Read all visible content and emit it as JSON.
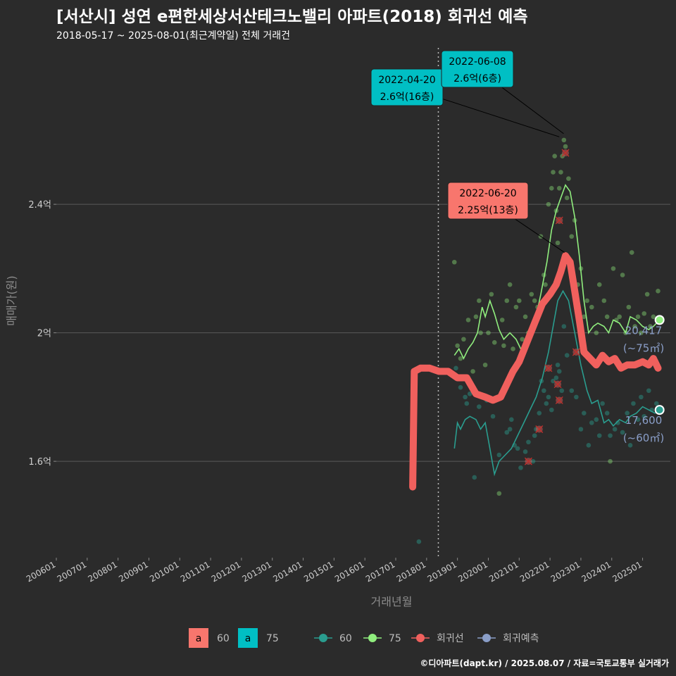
{
  "header": {
    "title": "[서산시] 성연 e편한세상서산테크노밸리 아파트(2018) 회귀선 예측",
    "subtitle": "2018-05-17 ~ 2025-08-01(최근계약일) 전체 거래건",
    "caption": "©디아파트(dapt.kr) / 2025.08.07 / 자료=국토교통부 실거래가"
  },
  "chart_data": {
    "type": "line",
    "xlabel": "거래년월",
    "ylabel": "매매가(원)",
    "x_range": [
      2006.0,
      2025.9
    ],
    "ylim": [
      1.3,
      2.9
    ],
    "y_ticks": [
      {
        "v": 1.6,
        "label": "1.6억"
      },
      {
        "v": 2.0,
        "label": "2억"
      },
      {
        "v": 2.4,
        "label": "2.4억"
      }
    ],
    "x_ticks": [
      "200601",
      "200701",
      "200801",
      "200901",
      "201001",
      "201101",
      "201201",
      "201301",
      "201401",
      "201501",
      "201601",
      "201701",
      "201801",
      "201901",
      "202001",
      "202101",
      "202201",
      "202301",
      "202401",
      "202501"
    ],
    "vline_x": 2018.38,
    "colors": {
      "s60": "#2a9d8f",
      "s75": "#90ee7e",
      "reg": "#f0605d",
      "pred": "#8a9ec8",
      "box60": "#f8766d",
      "box75": "#00bfc4",
      "grid": "#5a5a5a"
    },
    "series": [
      {
        "name": "60",
        "key": "s60",
        "points": [
          [
            2018.9,
            1.64
          ],
          [
            2019.0,
            1.72
          ],
          [
            2019.1,
            1.7
          ],
          [
            2019.25,
            1.73
          ],
          [
            2019.4,
            1.74
          ],
          [
            2019.6,
            1.73
          ],
          [
            2019.75,
            1.7
          ],
          [
            2019.9,
            1.72
          ],
          [
            2020.05,
            1.64
          ],
          [
            2020.2,
            1.56
          ],
          [
            2020.35,
            1.6
          ],
          [
            2020.55,
            1.62
          ],
          [
            2020.75,
            1.64
          ],
          [
            2020.95,
            1.68
          ],
          [
            2021.15,
            1.72
          ],
          [
            2021.35,
            1.76
          ],
          [
            2021.55,
            1.8
          ],
          [
            2021.75,
            1.86
          ],
          [
            2021.95,
            1.94
          ],
          [
            2022.1,
            2.02
          ],
          [
            2022.25,
            2.1
          ],
          [
            2022.42,
            2.13
          ],
          [
            2022.6,
            2.1
          ],
          [
            2022.8,
            2.0
          ],
          [
            2023.0,
            1.9
          ],
          [
            2023.2,
            1.82
          ],
          [
            2023.35,
            1.78
          ],
          [
            2023.55,
            1.79
          ],
          [
            2023.75,
            1.72
          ],
          [
            2023.9,
            1.73
          ],
          [
            2024.05,
            1.71
          ],
          [
            2024.25,
            1.73
          ],
          [
            2024.45,
            1.72
          ],
          [
            2024.6,
            1.74
          ],
          [
            2024.8,
            1.75
          ],
          [
            2025.0,
            1.77
          ],
          [
            2025.2,
            1.76
          ],
          [
            2025.4,
            1.75
          ],
          [
            2025.55,
            1.76
          ]
        ]
      },
      {
        "name": "75",
        "key": "s75",
        "points": [
          [
            2018.9,
            1.93
          ],
          [
            2019.05,
            1.95
          ],
          [
            2019.2,
            1.92
          ],
          [
            2019.35,
            1.95
          ],
          [
            2019.5,
            1.97
          ],
          [
            2019.65,
            2.0
          ],
          [
            2019.8,
            2.08
          ],
          [
            2019.9,
            2.05
          ],
          [
            2020.05,
            2.1
          ],
          [
            2020.2,
            2.06
          ],
          [
            2020.35,
            2.01
          ],
          [
            2020.5,
            1.98
          ],
          [
            2020.7,
            2.0
          ],
          [
            2020.9,
            1.98
          ],
          [
            2021.1,
            1.94
          ],
          [
            2021.3,
            1.96
          ],
          [
            2021.5,
            2.03
          ],
          [
            2021.7,
            2.12
          ],
          [
            2021.9,
            2.22
          ],
          [
            2022.05,
            2.32
          ],
          [
            2022.2,
            2.38
          ],
          [
            2022.35,
            2.42
          ],
          [
            2022.5,
            2.46
          ],
          [
            2022.65,
            2.44
          ],
          [
            2022.8,
            2.36
          ],
          [
            2022.95,
            2.24
          ],
          [
            2023.1,
            2.1
          ],
          [
            2023.25,
            2.0
          ],
          [
            2023.4,
            2.02
          ],
          [
            2023.55,
            2.03
          ],
          [
            2023.75,
            2.02
          ],
          [
            2023.9,
            2.0
          ],
          [
            2024.05,
            2.04
          ],
          [
            2024.25,
            2.03
          ],
          [
            2024.45,
            2.0
          ],
          [
            2024.6,
            2.05
          ],
          [
            2024.8,
            2.04
          ],
          [
            2025.0,
            2.02
          ],
          [
            2025.2,
            2.01
          ],
          [
            2025.35,
            2.02
          ],
          [
            2025.55,
            2.04
          ]
        ]
      },
      {
        "name": "회귀선",
        "key": "reg",
        "points": [
          [
            2017.55,
            1.52
          ],
          [
            2017.6,
            1.88
          ],
          [
            2017.8,
            1.89
          ],
          [
            2018.1,
            1.89
          ],
          [
            2018.4,
            1.88
          ],
          [
            2018.7,
            1.88
          ],
          [
            2019.0,
            1.86
          ],
          [
            2019.3,
            1.86
          ],
          [
            2019.6,
            1.81
          ],
          [
            2019.9,
            1.8
          ],
          [
            2020.15,
            1.79
          ],
          [
            2020.4,
            1.8
          ],
          [
            2020.6,
            1.84
          ],
          [
            2020.8,
            1.88
          ],
          [
            2021.0,
            1.91
          ],
          [
            2021.25,
            1.97
          ],
          [
            2021.5,
            2.03
          ],
          [
            2021.75,
            2.09
          ],
          [
            2022.0,
            2.12
          ],
          [
            2022.2,
            2.15
          ],
          [
            2022.35,
            2.19
          ],
          [
            2022.5,
            2.24
          ],
          [
            2022.65,
            2.22
          ],
          [
            2022.8,
            2.13
          ],
          [
            2022.95,
            2.04
          ],
          [
            2023.1,
            1.94
          ],
          [
            2023.3,
            1.92
          ],
          [
            2023.5,
            1.9
          ],
          [
            2023.7,
            1.93
          ],
          [
            2023.9,
            1.91
          ],
          [
            2024.1,
            1.92
          ],
          [
            2024.3,
            1.89
          ],
          [
            2024.5,
            1.9
          ],
          [
            2024.75,
            1.9
          ],
          [
            2025.0,
            1.91
          ],
          [
            2025.2,
            1.9
          ],
          [
            2025.35,
            1.92
          ],
          [
            2025.5,
            1.89
          ]
        ]
      }
    ],
    "scatter60": [
      [
        2017.75,
        1.35
      ],
      [
        2018.95,
        1.89
      ],
      [
        2019.1,
        1.83
      ],
      [
        2019.25,
        1.8
      ],
      [
        2019.3,
        1.78
      ],
      [
        2019.4,
        1.81
      ],
      [
        2019.55,
        1.55
      ],
      [
        2019.7,
        1.77
      ],
      [
        2019.95,
        1.79
      ],
      [
        2020.15,
        1.74
      ],
      [
        2020.35,
        1.62
      ],
      [
        2020.6,
        1.69
      ],
      [
        2020.7,
        1.7
      ],
      [
        2020.75,
        1.73
      ],
      [
        2020.85,
        1.65
      ],
      [
        2020.95,
        1.64
      ],
      [
        2021.05,
        1.58
      ],
      [
        2021.2,
        1.63
      ],
      [
        2021.3,
        1.66
      ],
      [
        2021.45,
        1.6
      ],
      [
        2021.5,
        1.68
      ],
      [
        2021.55,
        1.7
      ],
      [
        2021.65,
        1.75
      ],
      [
        2021.72,
        1.85
      ],
      [
        2021.8,
        1.82
      ],
      [
        2021.88,
        1.78
      ],
      [
        2021.95,
        1.8
      ],
      [
        2022.05,
        1.76
      ],
      [
        2022.1,
        1.85
      ],
      [
        2022.2,
        1.86
      ],
      [
        2022.25,
        1.9
      ],
      [
        2022.3,
        1.88
      ],
      [
        2022.38,
        1.82
      ],
      [
        2022.45,
        2.02
      ],
      [
        2022.55,
        1.93
      ],
      [
        2022.7,
        1.82
      ],
      [
        2022.85,
        1.8
      ],
      [
        2023.0,
        1.7
      ],
      [
        2023.1,
        1.75
      ],
      [
        2023.25,
        1.65
      ],
      [
        2023.35,
        1.72
      ],
      [
        2023.5,
        1.73
      ],
      [
        2023.6,
        1.68
      ],
      [
        2023.7,
        1.78
      ],
      [
        2023.85,
        1.75
      ],
      [
        2023.95,
        1.68
      ],
      [
        2024.1,
        1.7
      ],
      [
        2024.2,
        1.72
      ],
      [
        2024.35,
        1.69
      ],
      [
        2024.5,
        1.75
      ],
      [
        2024.6,
        1.65
      ],
      [
        2024.7,
        1.78
      ],
      [
        2024.85,
        1.73
      ],
      [
        2024.95,
        1.8
      ],
      [
        2025.05,
        1.74
      ],
      [
        2025.2,
        1.82
      ],
      [
        2025.3,
        1.76
      ],
      [
        2025.45,
        1.78
      ]
    ],
    "scatter75": [
      [
        2018.9,
        2.22
      ],
      [
        2019.0,
        1.96
      ],
      [
        2019.1,
        1.92
      ],
      [
        2019.2,
        1.98
      ],
      [
        2019.35,
        2.04
      ],
      [
        2019.5,
        1.88
      ],
      [
        2019.6,
        2.05
      ],
      [
        2019.7,
        2.1
      ],
      [
        2019.75,
        2.0
      ],
      [
        2019.9,
        1.9
      ],
      [
        2020.0,
        2.0
      ],
      [
        2020.1,
        2.12
      ],
      [
        2020.2,
        1.97
      ],
      [
        2020.35,
        1.5
      ],
      [
        2020.45,
        2.04
      ],
      [
        2020.5,
        1.96
      ],
      [
        2020.6,
        2.1
      ],
      [
        2020.7,
        2.15
      ],
      [
        2020.8,
        1.95
      ],
      [
        2020.9,
        2.08
      ],
      [
        2021.0,
        2.1
      ],
      [
        2021.1,
        1.98
      ],
      [
        2021.2,
        2.05
      ],
      [
        2021.3,
        2.0
      ],
      [
        2021.4,
        2.12
      ],
      [
        2021.5,
        2.1
      ],
      [
        2021.6,
        2.08
      ],
      [
        2021.7,
        2.3
      ],
      [
        2021.8,
        2.18
      ],
      [
        2021.85,
        2.15
      ],
      [
        2021.95,
        2.4
      ],
      [
        2022.05,
        2.45
      ],
      [
        2022.1,
        2.5
      ],
      [
        2022.15,
        2.55
      ],
      [
        2022.2,
        2.38
      ],
      [
        2022.25,
        2.28
      ],
      [
        2022.3,
        2.45
      ],
      [
        2022.35,
        2.5
      ],
      [
        2022.4,
        2.55
      ],
      [
        2022.45,
        2.6
      ],
      [
        2022.5,
        2.58
      ],
      [
        2022.55,
        2.42
      ],
      [
        2022.6,
        2.48
      ],
      [
        2022.7,
        2.3
      ],
      [
        2022.8,
        2.35
      ],
      [
        2022.9,
        2.15
      ],
      [
        2023.0,
        2.2
      ],
      [
        2023.1,
        2.05
      ],
      [
        2023.2,
        2.1
      ],
      [
        2023.35,
        2.08
      ],
      [
        2023.5,
        2.0
      ],
      [
        2023.6,
        2.15
      ],
      [
        2023.75,
        2.1
      ],
      [
        2023.85,
        2.05
      ],
      [
        2023.95,
        1.6
      ],
      [
        2024.05,
        2.2
      ],
      [
        2024.15,
        2.04
      ],
      [
        2024.25,
        2.05
      ],
      [
        2024.35,
        2.18
      ],
      [
        2024.45,
        2.0
      ],
      [
        2024.55,
        2.08
      ],
      [
        2024.65,
        2.25
      ],
      [
        2024.75,
        2.02
      ],
      [
        2024.85,
        2.05
      ],
      [
        2024.95,
        2.0
      ],
      [
        2025.05,
        2.06
      ],
      [
        2025.15,
        2.12
      ],
      [
        2025.25,
        2.02
      ],
      [
        2025.35,
        2.05
      ],
      [
        2025.5,
        2.13
      ]
    ],
    "regression_x": [
      [
        2021.3,
        1.6
      ],
      [
        2021.65,
        1.7
      ],
      [
        2021.95,
        1.89
      ],
      [
        2022.25,
        1.84
      ],
      [
        2022.3,
        1.79
      ],
      [
        2022.3,
        2.35
      ],
      [
        2022.5,
        2.56
      ],
      [
        2022.85,
        1.94
      ]
    ],
    "end_markers": [
      {
        "key": "s75",
        "x": 2025.55,
        "y": 2.04,
        "value": "20,417",
        "area": "(~75㎡)"
      },
      {
        "key": "s60",
        "x": 2025.55,
        "y": 1.76,
        "value": "17,600",
        "area": "(~60㎡)"
      }
    ],
    "annotations": [
      {
        "date": "2022-04-20",
        "price": "2.6억(16층)",
        "x": 2022.3,
        "y": 2.61,
        "box": "box75"
      },
      {
        "date": "2022-06-08",
        "price": "2.6억(6층)",
        "x": 2022.44,
        "y": 2.62,
        "box": "box75"
      },
      {
        "date": "2022-06-20",
        "price": "2.25억(13층)",
        "x": 2022.47,
        "y": 2.25,
        "box": "box60"
      }
    ],
    "legend": {
      "fill": [
        {
          "glyph": "a",
          "label": "60",
          "box": "box60"
        },
        {
          "glyph": "a",
          "label": "75",
          "box": "box75"
        }
      ],
      "line": [
        {
          "label": "60",
          "key": "s60"
        },
        {
          "label": "75",
          "key": "s75"
        },
        {
          "label": "회귀선",
          "key": "reg"
        },
        {
          "label": "회귀예측",
          "key": "pred"
        }
      ]
    }
  }
}
